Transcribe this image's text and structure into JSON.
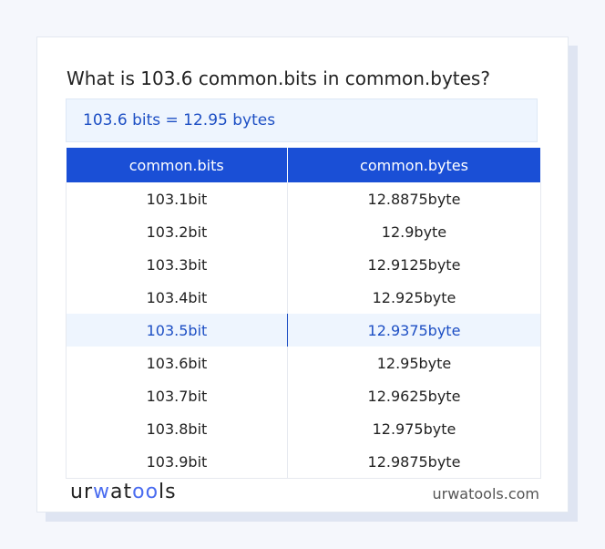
{
  "title": "What is 103.6 common.bits in common.bytes?",
  "result": "103.6 bits = 12.95 bytes",
  "table": {
    "headers": [
      "common.bits",
      "common.bytes"
    ],
    "rows": [
      [
        "103.1bit",
        "12.8875byte"
      ],
      [
        "103.2bit",
        "12.9byte"
      ],
      [
        "103.3bit",
        "12.9125byte"
      ],
      [
        "103.4bit",
        "12.925byte"
      ],
      [
        "103.5bit",
        "12.9375byte"
      ],
      [
        "103.6bit",
        "12.95byte"
      ],
      [
        "103.7bit",
        "12.9625byte"
      ],
      [
        "103.8bit",
        "12.975byte"
      ],
      [
        "103.9bit",
        "12.9875byte"
      ]
    ],
    "highlighted_row": 4
  },
  "footer": {
    "logo": "urwatools",
    "site": "urwatools.com"
  },
  "colors": {
    "accent": "#1a4fd6",
    "highlight_bg": "#eef5fe"
  }
}
